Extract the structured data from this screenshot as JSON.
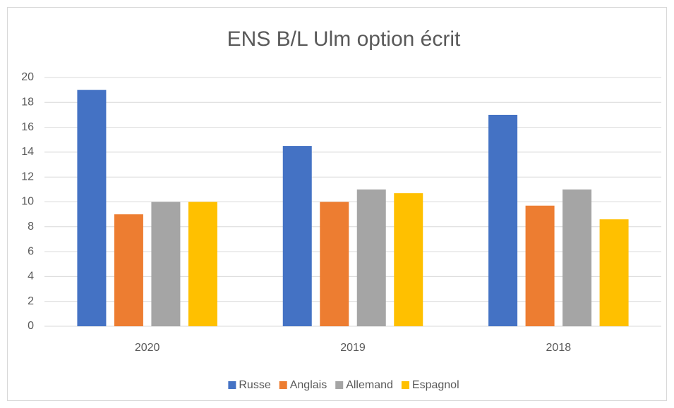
{
  "chart_data": {
    "type": "bar",
    "title": "ENS B/L Ulm option écrit",
    "categories": [
      "2020",
      "2019",
      "2018"
    ],
    "series": [
      {
        "name": "Russe",
        "color": "#4472c4",
        "values": [
          19,
          14.5,
          17
        ]
      },
      {
        "name": "Anglais",
        "color": "#ed7d31",
        "values": [
          9,
          10,
          9.7
        ]
      },
      {
        "name": "Allemand",
        "color": "#a5a5a5",
        "values": [
          10,
          11,
          11
        ]
      },
      {
        "name": "Espagnol",
        "color": "#ffc000",
        "values": [
          10,
          10.7,
          8.6
        ]
      }
    ],
    "ylim": [
      0,
      20
    ],
    "yticks": [
      0,
      2,
      4,
      6,
      8,
      10,
      12,
      14,
      16,
      18,
      20
    ],
    "grid": true,
    "legend": "bottom"
  }
}
